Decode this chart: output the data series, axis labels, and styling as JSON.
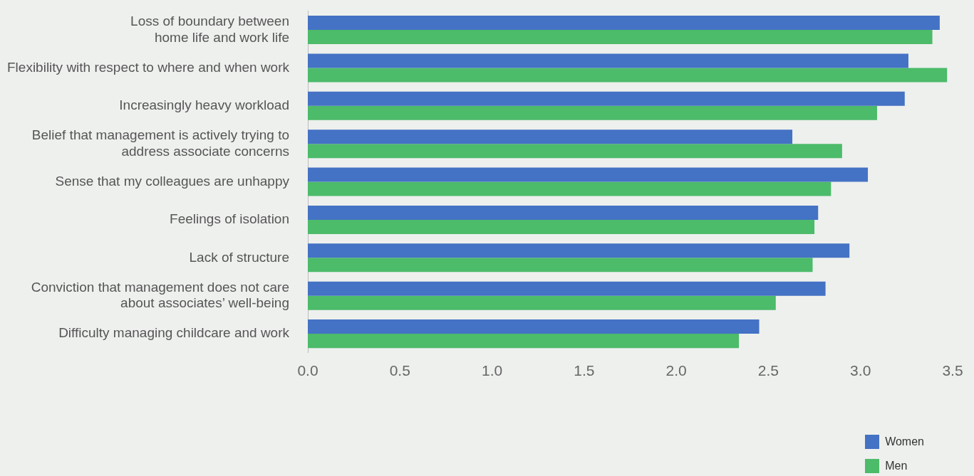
{
  "chart_data": {
    "type": "bar",
    "orientation": "horizontal",
    "categories": [
      [
        "Loss of boundary between",
        "home life and work life"
      ],
      "Flexibility with respect to where and when work",
      "Increasingly heavy workload",
      [
        "Belief that management is actively trying to",
        "address associate concerns"
      ],
      "Sense that my colleagues are unhappy",
      "Feelings of isolation",
      "Lack of structure",
      [
        "Conviction that management does not care",
        "about associates’ well-being"
      ],
      "Difficulty managing childcare and work"
    ],
    "series": [
      {
        "name": "Women",
        "color": "#4472c4",
        "values": [
          3.43,
          3.26,
          3.24,
          2.63,
          3.04,
          2.77,
          2.94,
          2.81,
          2.45
        ]
      },
      {
        "name": "Men",
        "color": "#4cbb6a",
        "values": [
          3.39,
          3.47,
          3.09,
          2.9,
          2.84,
          2.75,
          2.74,
          2.54,
          2.34
        ]
      }
    ],
    "xlim": [
      0,
      3.5
    ],
    "xticks": [
      {
        "value": 0,
        "label": "0.0"
      },
      0.5,
      {
        "value": 1,
        "label": "1.0"
      },
      1.5,
      {
        "value": 2,
        "label": "2.0"
      },
      2.5,
      {
        "value": 3,
        "label": "3.0"
      },
      3.5
    ],
    "grid": false,
    "legend": "bottom right"
  }
}
